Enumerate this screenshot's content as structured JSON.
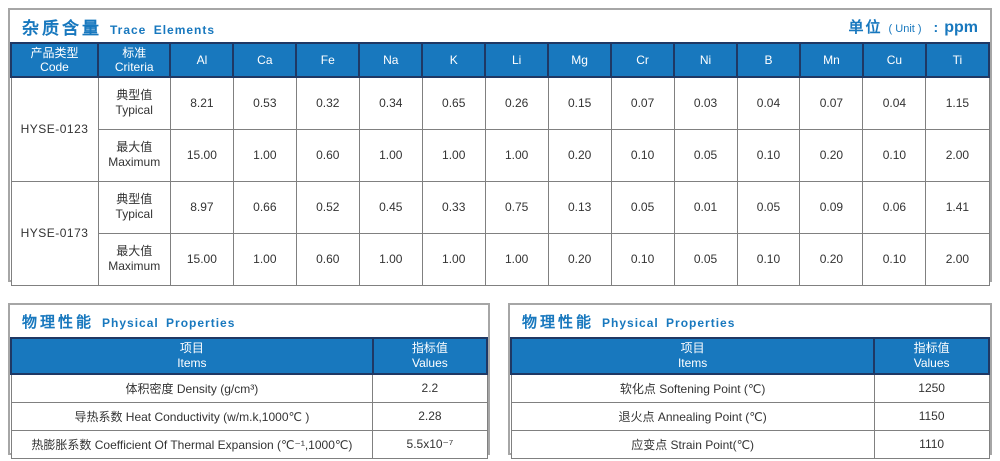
{
  "colors": {
    "accent": "#1878be",
    "header_border": "#1f3864",
    "grid_border": "#808080",
    "panel_border": "#a6a6a6",
    "text": "#333333"
  },
  "trace_elements": {
    "title_cn": "杂质含量",
    "title_en": "Trace Elements",
    "unit_label_cn": "单位",
    "unit_label_en": "( Unit )",
    "unit_colon": ":",
    "unit_value": "ppm",
    "col_headers": {
      "code_cn": "产品类型",
      "code_en": "Code",
      "criteria_cn": "标准",
      "criteria_en": "Criteria",
      "elements": [
        "Al",
        "Ca",
        "Fe",
        "Na",
        "K",
        "Li",
        "Mg",
        "Cr",
        "Ni",
        "B",
        "Mn",
        "Cu",
        "Ti"
      ]
    },
    "products": [
      {
        "code": "HYSE-0123",
        "rows": [
          {
            "label_cn": "典型值",
            "label_en": "Typical",
            "values": [
              "8.21",
              "0.53",
              "0.32",
              "0.34",
              "0.65",
              "0.26",
              "0.15",
              "0.07",
              "0.03",
              "0.04",
              "0.07",
              "0.04",
              "1.15"
            ]
          },
          {
            "label_cn": "最大值",
            "label_en": "Maximum",
            "values": [
              "15.00",
              "1.00",
              "0.60",
              "1.00",
              "1.00",
              "1.00",
              "0.20",
              "0.10",
              "0.05",
              "0.10",
              "0.20",
              "0.10",
              "2.00"
            ]
          }
        ]
      },
      {
        "code": "HYSE-0173",
        "rows": [
          {
            "label_cn": "典型值",
            "label_en": "Typical",
            "values": [
              "8.97",
              "0.66",
              "0.52",
              "0.45",
              "0.33",
              "0.75",
              "0.13",
              "0.05",
              "0.01",
              "0.05",
              "0.09",
              "0.06",
              "1.41"
            ]
          },
          {
            "label_cn": "最大值",
            "label_en": "Maximum",
            "values": [
              "15.00",
              "1.00",
              "0.60",
              "1.00",
              "1.00",
              "1.00",
              "0.20",
              "0.10",
              "0.05",
              "0.10",
              "0.20",
              "0.10",
              "2.00"
            ]
          }
        ]
      }
    ]
  },
  "physical_left": {
    "title_cn": "物理性能",
    "title_en": "Physical Properties",
    "header_items_cn": "项目",
    "header_items_en": "Items",
    "header_values_cn": "指标值",
    "header_values_en": "Values",
    "rows": [
      {
        "item": "体积密度 Density (g/cm³)",
        "value": "2.2"
      },
      {
        "item": "导热系数 Heat Conductivity (w/m.k,1000℃ )",
        "value": "2.28"
      },
      {
        "item": "热膨胀系数 Coefficient Of Thermal Expansion (℃⁻¹,1000℃)",
        "value": "5.5x10⁻⁷"
      }
    ]
  },
  "physical_right": {
    "title_cn": "物理性能",
    "title_en": "Physical Properties",
    "header_items_cn": "项目",
    "header_items_en": "Items",
    "header_values_cn": "指标值",
    "header_values_en": "Values",
    "rows": [
      {
        "item": "软化点 Softening Point (℃)",
        "value": "1250"
      },
      {
        "item": "退火点 Annealing Point (℃)",
        "value": "1150"
      },
      {
        "item": "应变点 Strain Point(℃)",
        "value": "1110"
      }
    ]
  }
}
